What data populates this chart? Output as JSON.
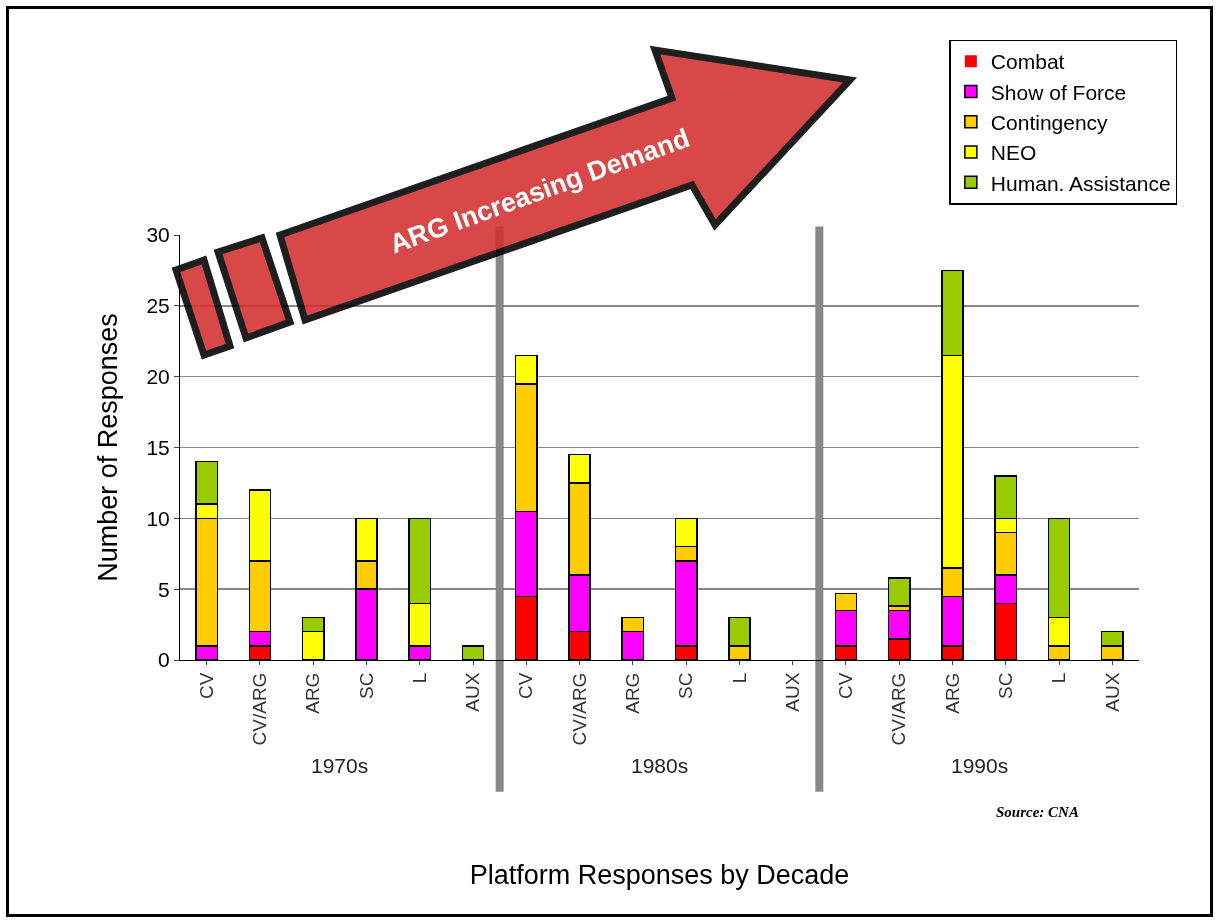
{
  "chart_data": {
    "type": "bar",
    "stacked": true,
    "xlabel": "Platform Responses by Decade",
    "ylabel": "Number of Responses",
    "categories": [
      "CV",
      "CV/ARG",
      "ARG",
      "SC",
      "L",
      "AUX",
      "CV",
      "CV/ARG",
      "ARG",
      "SC",
      "L",
      "AUX",
      "CV",
      "CV/ARG",
      "ARG",
      "SC",
      "L",
      "AUX"
    ],
    "series": [
      {
        "name": "Combat",
        "color": "#ff0000",
        "values": [
          0,
          1,
          0,
          0,
          0,
          0,
          4.5,
          2,
          0,
          1,
          0,
          0,
          1,
          1.5,
          1,
          4,
          0,
          0
        ]
      },
      {
        "name": "Show of Force",
        "color": "#ff00ff",
        "values": [
          1,
          1,
          0,
          5,
          1,
          0,
          6,
          4,
          2,
          6,
          0,
          0,
          2.5,
          2,
          3.5,
          2,
          0,
          0
        ]
      },
      {
        "name": "Contingency",
        "color": "#ffcc00",
        "values": [
          9,
          5,
          0,
          2,
          0,
          0,
          9,
          6.5,
          1,
          1,
          1,
          0,
          1.2,
          0.3,
          2,
          3,
          1,
          1
        ]
      },
      {
        "name": "NEO",
        "color": "#ffff00",
        "values": [
          1,
          5,
          2,
          3,
          3,
          0,
          2,
          2,
          0,
          2,
          0,
          0,
          0,
          0,
          15,
          1,
          2,
          0
        ]
      },
      {
        "name": "Human. Assistance",
        "color": "#99cc00",
        "values": [
          3,
          0,
          1,
          0,
          6,
          1,
          0,
          0,
          0,
          0,
          2,
          0,
          0,
          2,
          6,
          3,
          7,
          1
        ]
      }
    ],
    "ylim": [
      0,
      30
    ],
    "yticks": [
      0,
      5,
      10,
      15,
      20,
      25,
      30
    ],
    "grid": "y",
    "legend": "top",
    "annotations": [
      "1970s",
      "1980s",
      "1990s",
      "Source: CNA",
      "ARG Increasing Demand"
    ]
  }
}
